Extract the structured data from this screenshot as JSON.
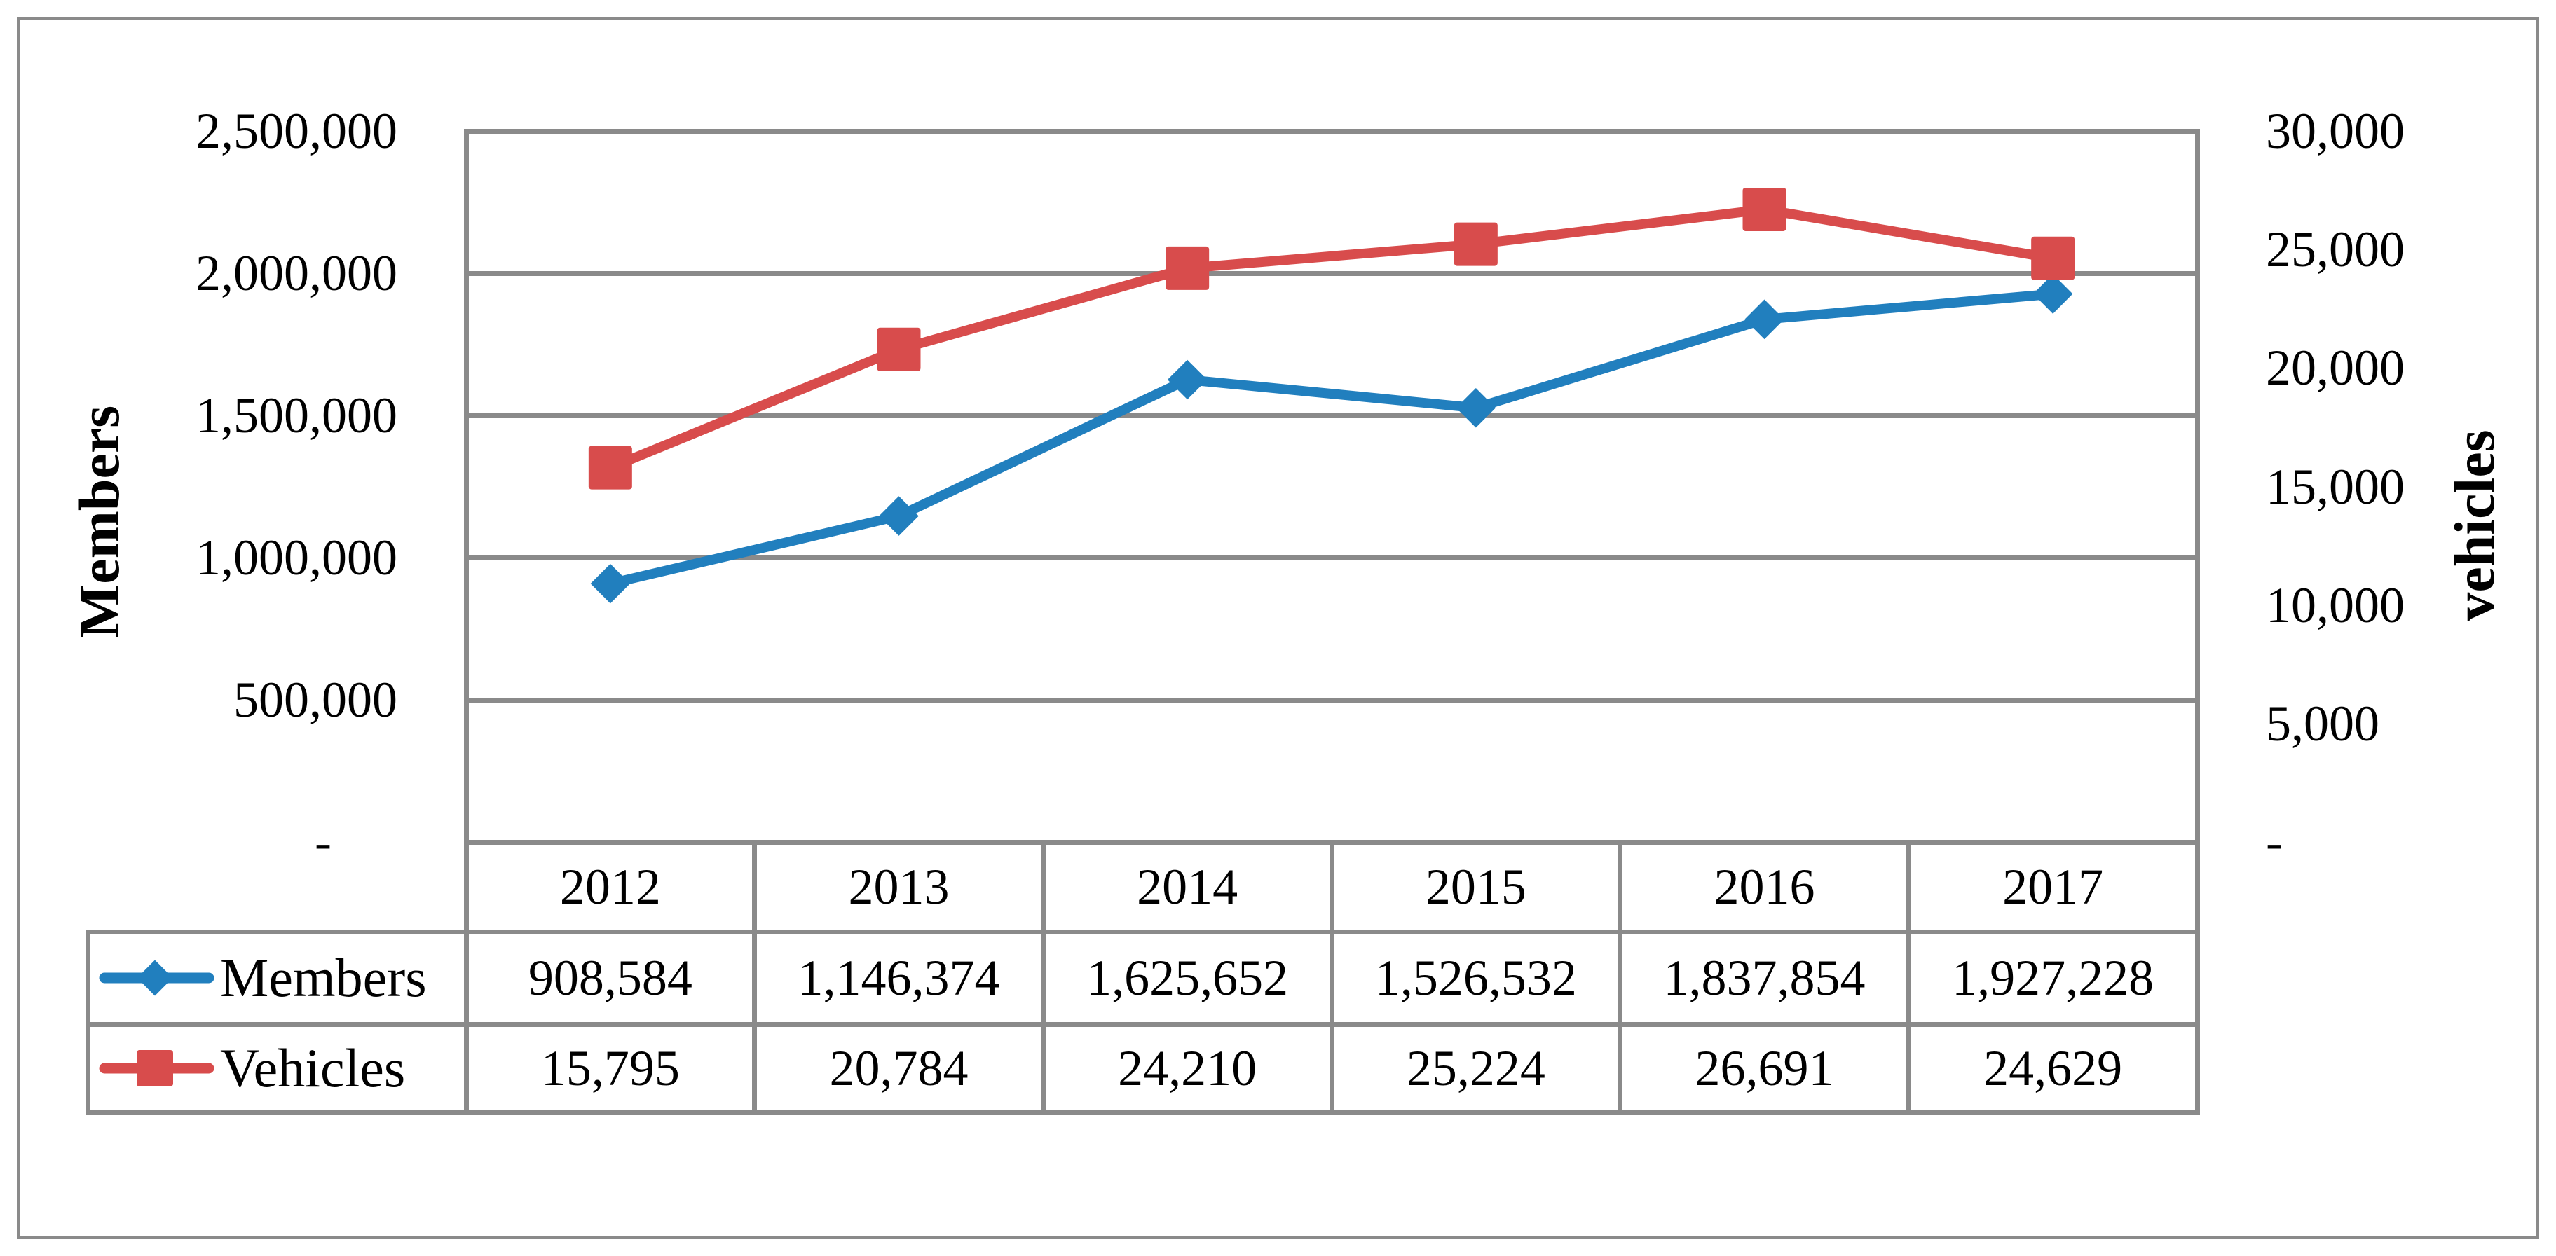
{
  "chart_data": {
    "type": "line",
    "categories": [
      "2012",
      "2013",
      "2014",
      "2015",
      "2016",
      "2017"
    ],
    "series": [
      {
        "name": "Members",
        "axis": "left",
        "marker": "diamond",
        "color": "#217fbe",
        "values": [
          908584,
          1146374,
          1625652,
          1526532,
          1837854,
          1927228
        ]
      },
      {
        "name": "Vehicles",
        "axis": "right",
        "marker": "square",
        "color": "#d84c4c",
        "values": [
          15795,
          20784,
          24210,
          25224,
          26691,
          24629
        ]
      }
    ],
    "left_axis": {
      "title": "Members",
      "min": 0,
      "max": 2500000,
      "tick_labels": [
        "-",
        "500,000",
        "1,000,000",
        "1,500,000",
        "2,000,000",
        "2,500,000"
      ]
    },
    "right_axis": {
      "title": "vehicles",
      "min": 0,
      "max": 30000,
      "tick_labels": [
        "-",
        "5,000",
        "10,000",
        "15,000",
        "20,000",
        "25,000",
        "30,000"
      ]
    },
    "gridlines": "horizontal",
    "legend_position": "table-left",
    "grid_color": "#8a8a8a"
  },
  "table": {
    "members_label": "Members",
    "vehicles_label": "Vehicles",
    "members_values": [
      "908,584",
      "1,146,374",
      "1,625,652",
      "1,526,532",
      "1,837,854",
      "1,927,228"
    ],
    "vehicles_values": [
      "15,795",
      "20,784",
      "24,210",
      "25,224",
      "26,691",
      "24,629"
    ]
  }
}
